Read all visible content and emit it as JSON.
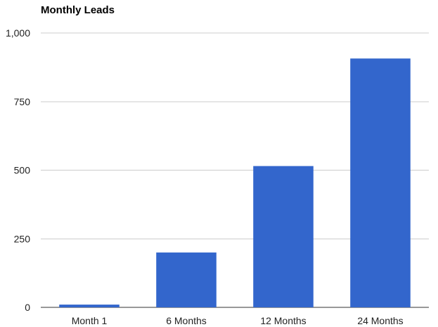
{
  "chart_data": {
    "type": "bar",
    "title": "Monthly Leads",
    "xlabel": "",
    "ylabel": "",
    "categories": [
      "Month 1",
      "6 Months",
      "12 Months",
      "24 Months"
    ],
    "values": [
      10,
      200,
      515,
      907
    ],
    "ylim": [
      0,
      1000
    ],
    "y_ticks": [
      0,
      250,
      500,
      750,
      1000
    ],
    "y_tick_labels": [
      "0",
      "250",
      "500",
      "750",
      "1,000"
    ],
    "grid": true,
    "legend": "none",
    "bar_color": "#3366cc"
  }
}
